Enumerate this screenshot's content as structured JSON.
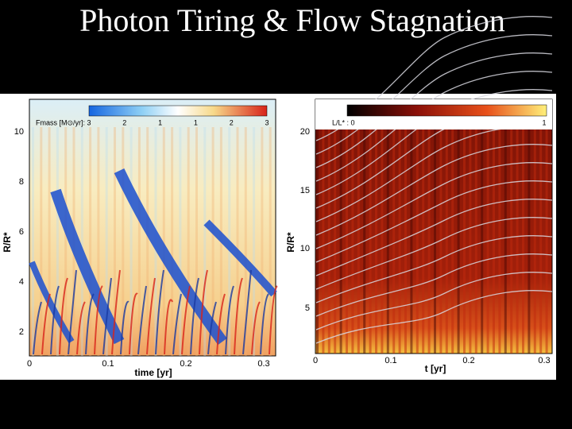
{
  "title": "Photon Tiring & Flow Stagnation",
  "panels": [
    {
      "colorbar_label": "Fmass [M⊙/yr]:",
      "colorbar_ticks": [
        "3",
        "2",
        "1",
        "1",
        "2",
        "3"
      ],
      "x_label": "time [yr]",
      "y_label": "R/R*",
      "x_ticks": [
        "0",
        "0.1",
        "0.2",
        "0.3"
      ],
      "y_ticks": [
        "2",
        "4",
        "6",
        "8",
        "10"
      ]
    },
    {
      "colorbar_label": "L/L* : 0",
      "colorbar_ticks": [
        "1"
      ],
      "x_label": "t [yr]",
      "y_label": "R/R*",
      "x_ticks": [
        "0",
        "0.1",
        "0.2",
        "0.3"
      ],
      "y_ticks": [
        "5",
        "10",
        "15",
        "20"
      ]
    }
  ]
}
